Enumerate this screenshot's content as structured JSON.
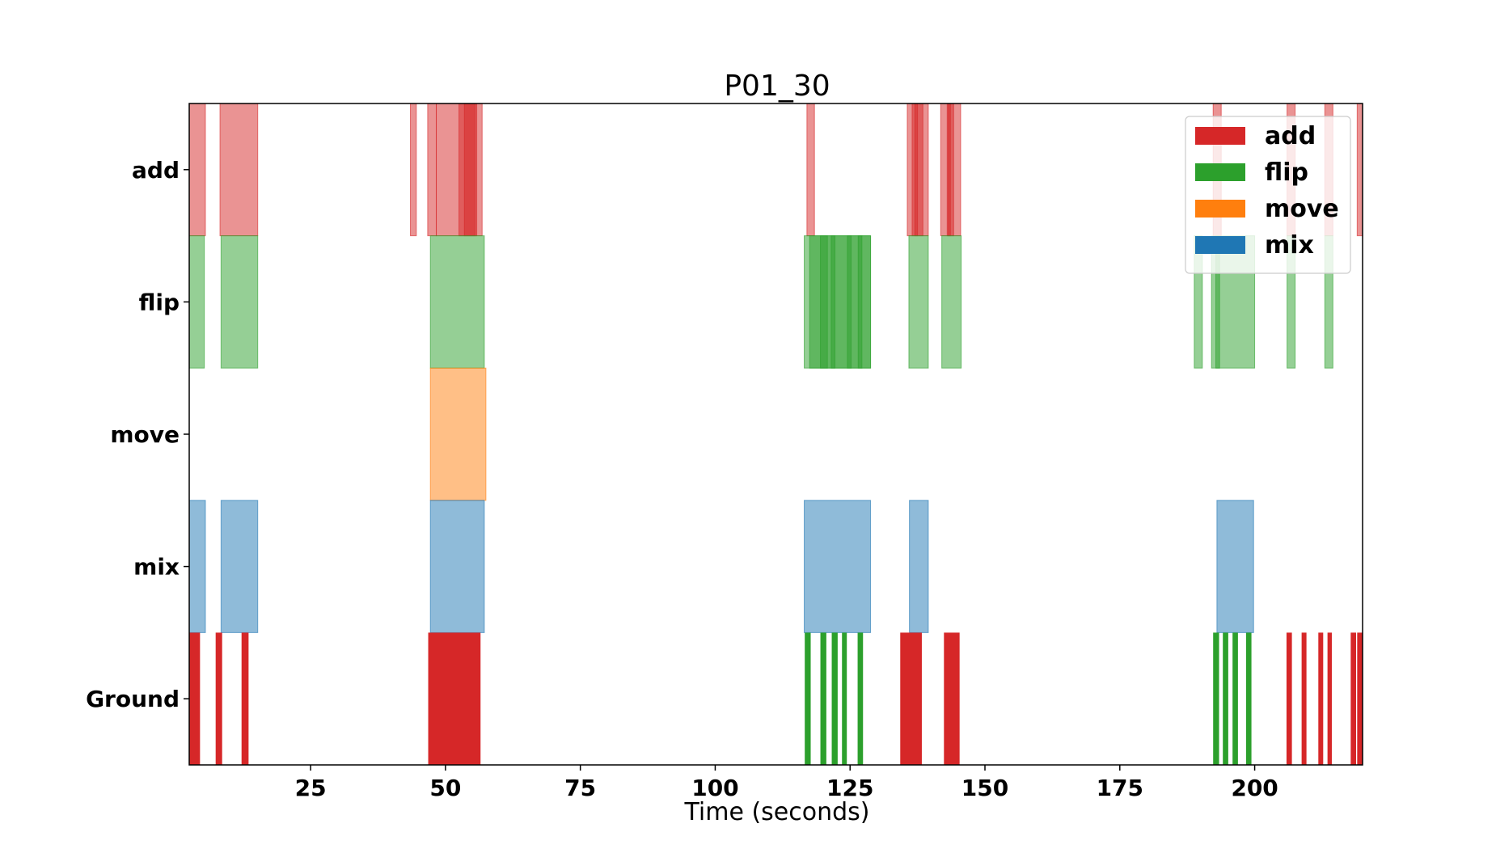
{
  "chart_data": {
    "type": "timeline",
    "title": "P01_30",
    "xlabel": "Time (seconds)",
    "xlim": [
      2.5,
      220
    ],
    "xticks": [
      "25",
      "50",
      "75",
      "100",
      "125",
      "150",
      "175",
      "200"
    ],
    "rows": [
      "add",
      "flip",
      "move",
      "mix",
      "Ground"
    ],
    "colors": {
      "add": "#d62728",
      "flip": "#2ca02c",
      "move": "#ff7f0e",
      "mix": "#1f77b4"
    },
    "legend": {
      "position": "top-right",
      "entries": [
        "add",
        "flip",
        "move",
        "mix"
      ]
    },
    "predictions": {
      "add": [
        [
          2.5,
          5.5
        ],
        [
          8.2,
          15.2
        ],
        [
          43.5,
          44.6
        ],
        [
          46.7,
          48.3
        ],
        [
          48.3,
          55.8
        ],
        [
          52.5,
          55.5
        ],
        [
          53.5,
          56.8
        ],
        [
          117,
          118.4
        ],
        [
          135.6,
          137.5
        ],
        [
          137,
          139.5
        ],
        [
          136.5,
          138.5
        ],
        [
          141.8,
          143.6
        ],
        [
          143.2,
          145.5
        ],
        [
          143,
          144.2
        ],
        [
          192.3,
          193.8
        ],
        [
          206,
          207.5
        ],
        [
          213,
          214.5
        ],
        [
          219,
          220
        ]
      ],
      "flip": [
        [
          2.5,
          5.3
        ],
        [
          8.4,
          15.2
        ],
        [
          47.2,
          57.2
        ],
        [
          116.5,
          128.8
        ],
        [
          117.5,
          120.8
        ],
        [
          119.5,
          122.2
        ],
        [
          121.5,
          125.2
        ],
        [
          124.5,
          127.2
        ],
        [
          126.5,
          128.8
        ],
        [
          135.9,
          139.5
        ],
        [
          142,
          145.6
        ],
        [
          188.8,
          190.3
        ],
        [
          192,
          193.5
        ],
        [
          192.8,
          200
        ],
        [
          206,
          207.5
        ],
        [
          213,
          214.5
        ]
      ],
      "move": [
        [
          47.2,
          57.5
        ]
      ],
      "mix": [
        [
          2.5,
          5.5
        ],
        [
          8.4,
          15.2
        ],
        [
          47.2,
          57.2
        ],
        [
          116.5,
          128.8
        ],
        [
          136,
          139.5
        ],
        [
          193,
          199.8
        ]
      ]
    },
    "ground": [
      {
        "label": "add",
        "x": [
          2.5,
          4.5
        ]
      },
      {
        "label": "add",
        "x": [
          7.4,
          8.6
        ]
      },
      {
        "label": "add",
        "x": [
          12.2,
          13.5
        ]
      },
      {
        "label": "add",
        "x": [
          46.8,
          56.5
        ]
      },
      {
        "label": "flip",
        "x": [
          116.6,
          117.7
        ]
      },
      {
        "label": "flip",
        "x": [
          119.5,
          120.6
        ]
      },
      {
        "label": "flip",
        "x": [
          121.6,
          122.7
        ]
      },
      {
        "label": "flip",
        "x": [
          123.5,
          124.4
        ]
      },
      {
        "label": "flip",
        "x": [
          126.4,
          127.4
        ]
      },
      {
        "label": "add",
        "x": [
          134.3,
          138.3
        ]
      },
      {
        "label": "add",
        "x": [
          142.4,
          145.3
        ]
      },
      {
        "label": "flip",
        "x": [
          192.3,
          193.4
        ]
      },
      {
        "label": "flip",
        "x": [
          194.1,
          195.1
        ]
      },
      {
        "label": "flip",
        "x": [
          195.9,
          196.9
        ]
      },
      {
        "label": "flip",
        "x": [
          198.4,
          199.4
        ]
      },
      {
        "label": "add",
        "x": [
          205.9,
          206.9
        ]
      },
      {
        "label": "add",
        "x": [
          208.7,
          209.6
        ]
      },
      {
        "label": "add",
        "x": [
          211.8,
          212.7
        ]
      },
      {
        "label": "add",
        "x": [
          213.5,
          214.3
        ]
      },
      {
        "label": "add",
        "x": [
          217.8,
          218.8
        ]
      },
      {
        "label": "add",
        "x": [
          219,
          220
        ]
      }
    ]
  }
}
